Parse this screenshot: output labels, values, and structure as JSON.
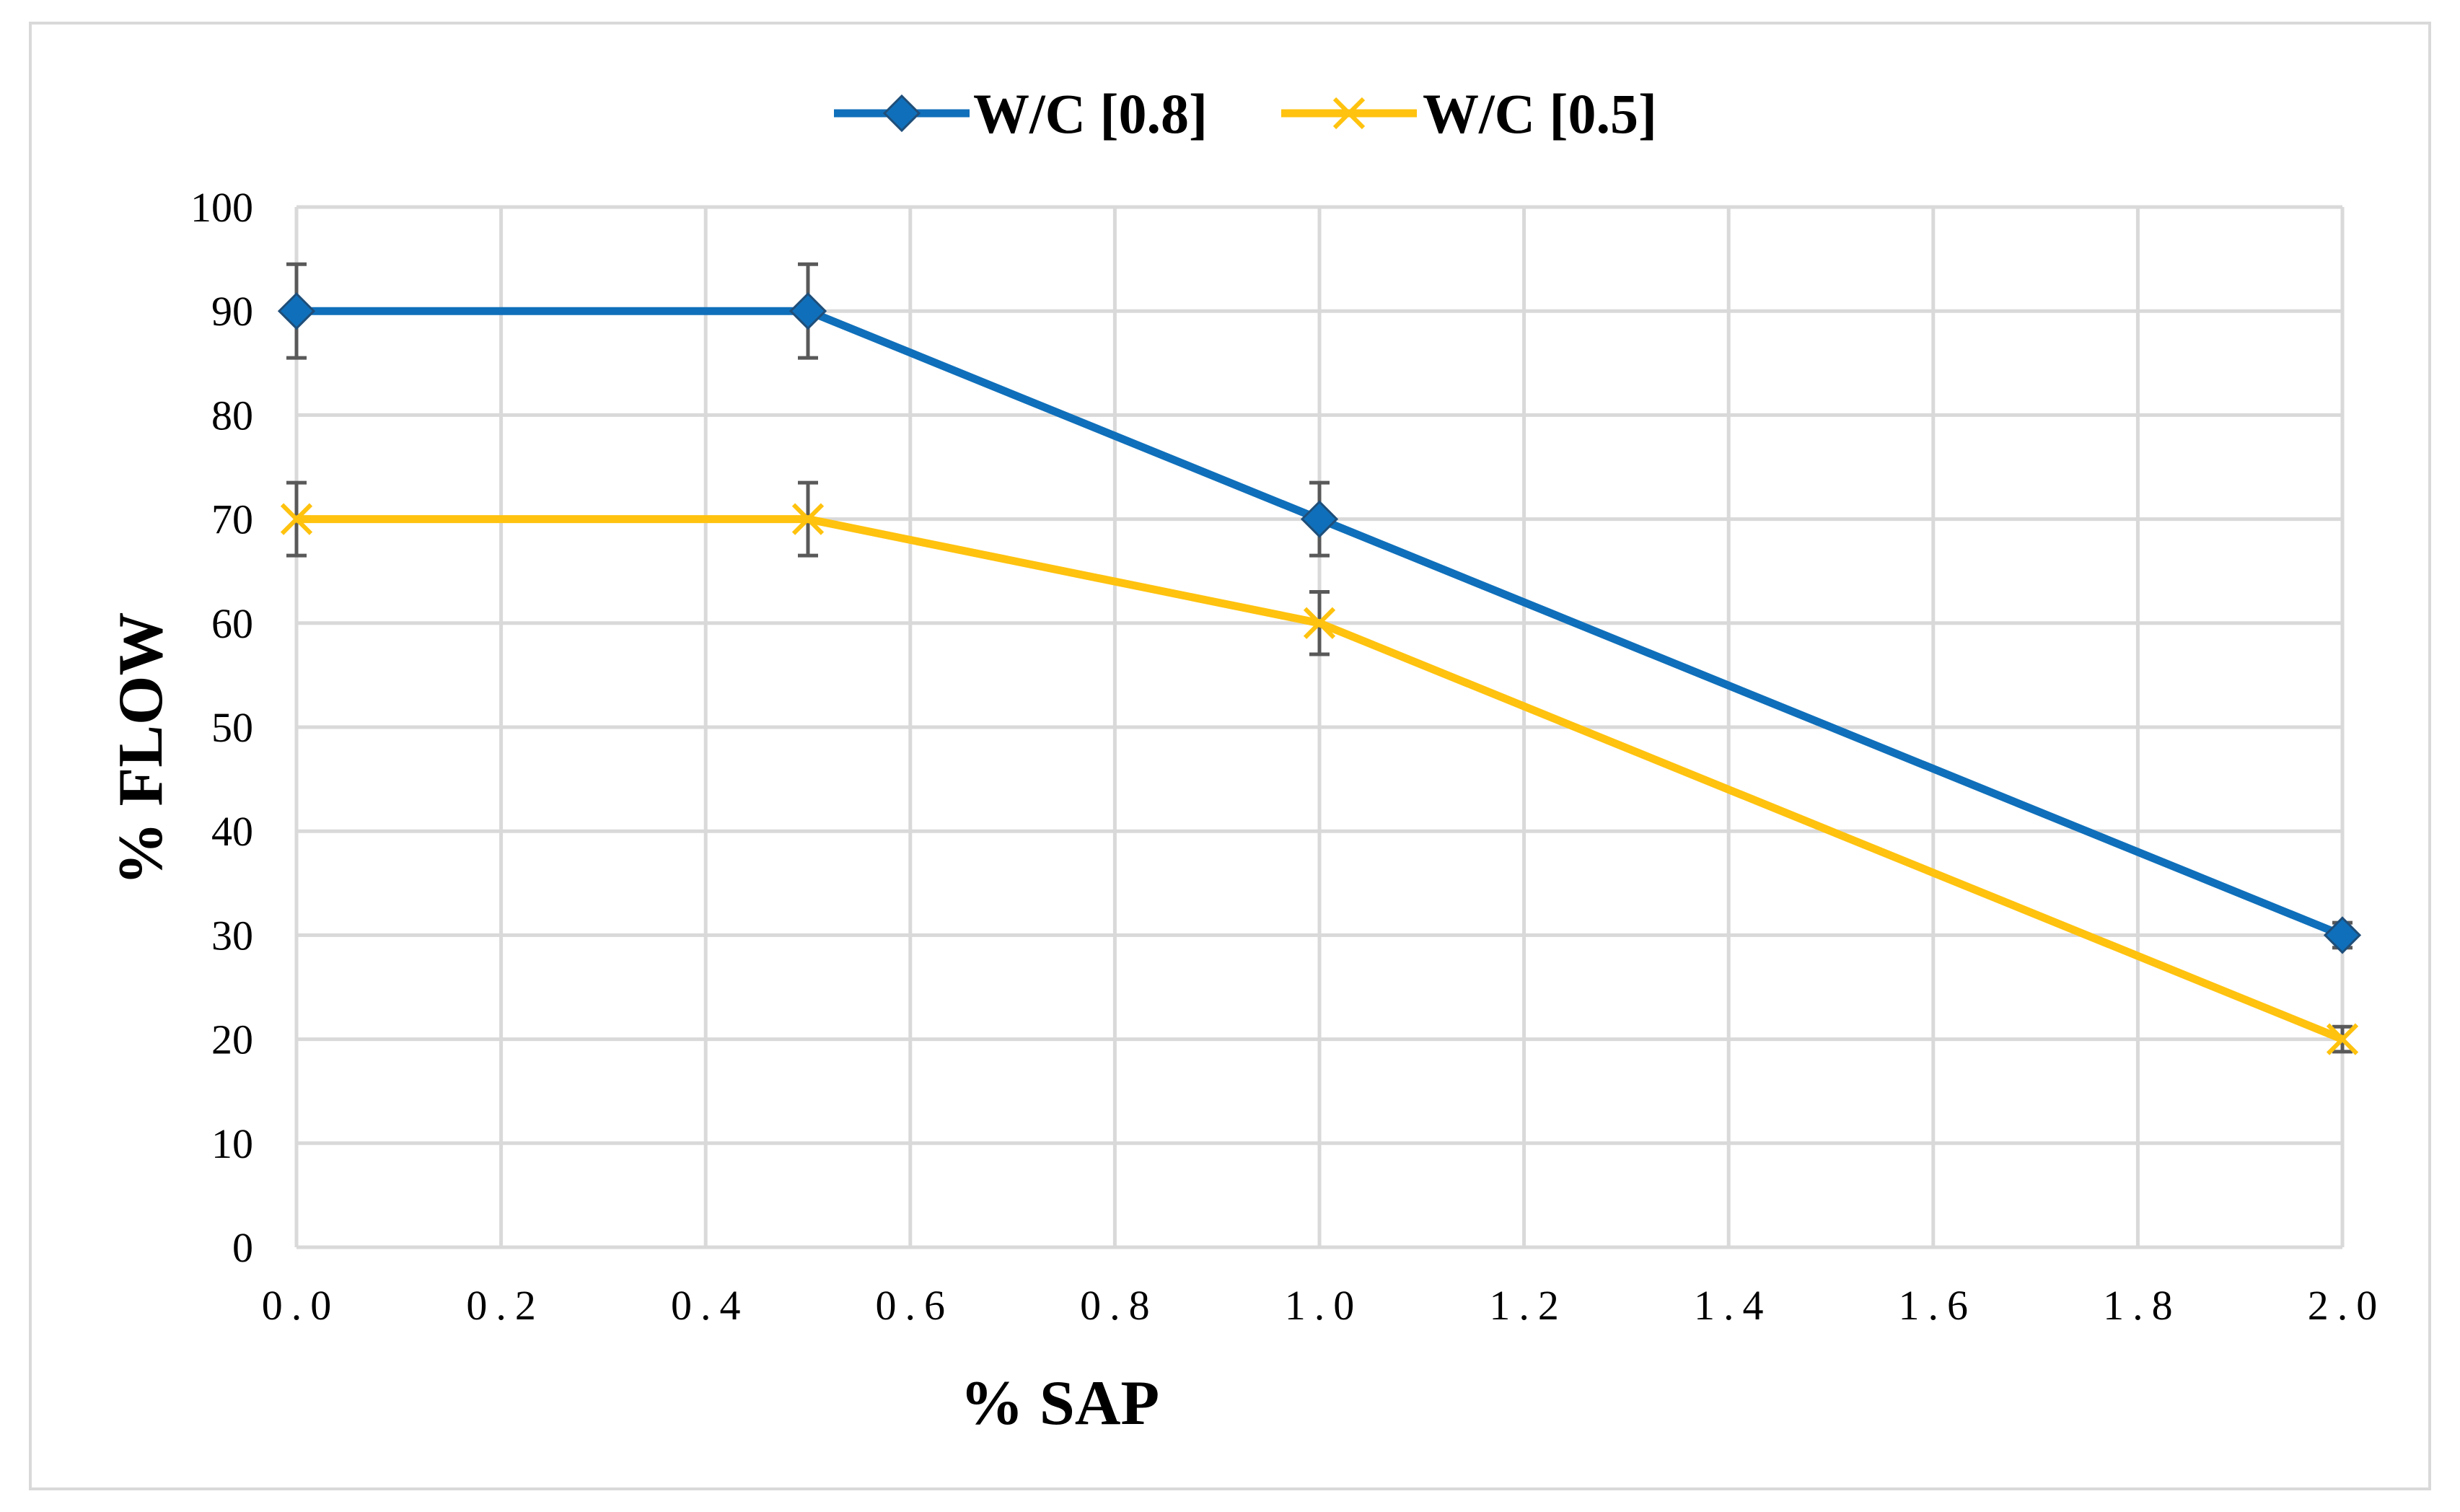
{
  "chart_data": {
    "type": "line",
    "title": "",
    "xlabel": "% SAP",
    "ylabel": "% FLOW",
    "xlim": [
      0,
      2
    ],
    "ylim": [
      0,
      100
    ],
    "x_ticks": [
      "0.0",
      "0.2",
      "0.4",
      "0.6",
      "0.8",
      "1.0",
      "1.2",
      "1.4",
      "1.6",
      "1.8",
      "2.0"
    ],
    "y_ticks": [
      "0",
      "10",
      "20",
      "30",
      "40",
      "50",
      "60",
      "70",
      "80",
      "90",
      "100"
    ],
    "grid": true,
    "legend_position": "top-center",
    "series": [
      {
        "name": "W/C [0.8]",
        "color": "#0f6fba",
        "marker": "diamond",
        "x": [
          0,
          0.5,
          1.0,
          2.0
        ],
        "y": [
          90,
          90,
          70,
          30
        ],
        "error": [
          4.5,
          4.5,
          3.5,
          1.2
        ]
      },
      {
        "name": "W/C [0.5]",
        "color": "#ffc20e",
        "marker": "x",
        "x": [
          0,
          0.5,
          1.0,
          2.0
        ],
        "y": [
          70,
          70,
          60,
          20
        ],
        "error": [
          3.5,
          3.5,
          3.0,
          1.2
        ]
      }
    ]
  }
}
